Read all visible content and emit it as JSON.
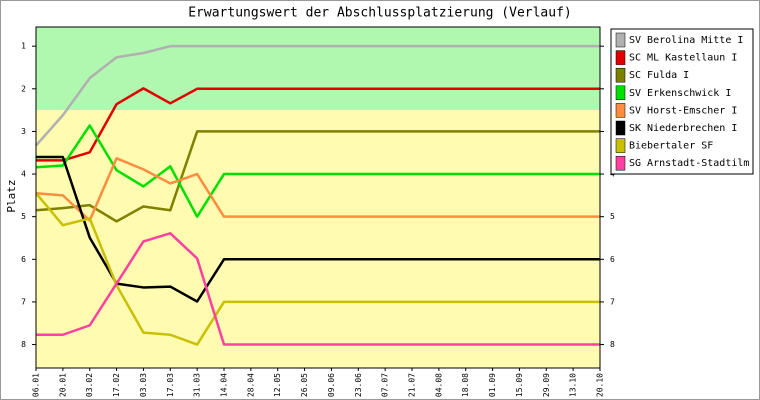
{
  "chart_data": {
    "type": "line",
    "title": "Erwartungswert der Abschlussplatzierung (Verlauf)",
    "y_label": "Platz",
    "categories": [
      "06.01",
      "20.01",
      "03.02",
      "17.02",
      "03.03",
      "17.03",
      "31.03",
      "14.04",
      "28.04",
      "12.05",
      "26.05",
      "09.06",
      "23.06",
      "07.07",
      "21.07",
      "04.08",
      "18.08",
      "01.09",
      "15.09",
      "29.09",
      "13.10",
      "20.10"
    ],
    "series": [
      {
        "name": "SV Berolina Mitte I",
        "color": "#b0b0b0",
        "values": [
          3.33,
          2.62,
          1.75,
          1.26,
          1.16,
          1,
          1,
          1,
          1,
          1,
          1,
          1,
          1,
          1,
          1,
          1,
          1,
          1,
          1,
          1,
          1,
          1
        ]
      },
      {
        "name": "SC ML Kastellaun I",
        "color": "#e00000",
        "values": [
          3.68,
          3.68,
          3.49,
          2.36,
          1.99,
          2.34,
          2,
          2,
          2,
          2,
          2,
          2,
          2,
          2,
          2,
          2,
          2,
          2,
          2,
          2,
          2,
          2
        ]
      },
      {
        "name": "SC Fulda I",
        "color": "#808000",
        "values": [
          4.85,
          4.8,
          4.73,
          5.11,
          4.76,
          4.85,
          3,
          3,
          3,
          3,
          3,
          3,
          3,
          3,
          3,
          3,
          3,
          3,
          3,
          3,
          3,
          3
        ]
      },
      {
        "name": "SV Erkenschwick I",
        "color": "#00e000",
        "values": [
          3.84,
          3.8,
          2.86,
          3.91,
          4.29,
          3.82,
          5,
          4,
          4,
          4,
          4,
          4,
          4,
          4,
          4,
          4,
          4,
          4,
          4,
          4,
          4,
          4
        ]
      },
      {
        "name": "SV Horst-Emscher I",
        "color": "#ff8c40",
        "values": [
          4.45,
          4.5,
          5.09,
          3.63,
          3.89,
          4.22,
          4,
          5,
          5,
          5,
          5,
          5,
          5,
          5,
          5,
          5,
          5,
          5,
          5,
          5,
          5,
          5
        ]
      },
      {
        "name": "SK Niederbrechen I",
        "color": "#000000",
        "values": [
          3.6,
          3.6,
          5.49,
          6.57,
          6.66,
          6.64,
          6.99,
          6,
          6,
          6,
          6,
          6,
          6,
          6,
          6,
          6,
          6,
          6,
          6,
          6,
          6,
          6
        ]
      },
      {
        "name": "Biebertaler SF",
        "color": "#c8c000",
        "values": [
          4.45,
          5.2,
          5.04,
          6.61,
          7.72,
          7.77,
          8,
          7,
          7,
          7,
          7,
          7,
          7,
          7,
          7,
          7,
          7,
          7,
          7,
          7,
          7,
          7
        ]
      },
      {
        "name": "SG Arnstadt-Stadtilm",
        "color": "#ff40a0",
        "values": [
          7.77,
          7.77,
          7.55,
          6.57,
          5.58,
          5.39,
          5.98,
          8,
          8,
          8,
          8,
          8,
          8,
          8,
          8,
          8,
          8,
          8,
          8,
          8,
          8,
          8
        ]
      }
    ],
    "ylim": [
      0.55,
      8.55
    ],
    "y_inverted": true,
    "yticks": [
      1,
      2,
      3,
      4,
      5,
      6,
      7,
      8
    ],
    "bands": [
      {
        "from": 0.55,
        "to": 2.5,
        "color": "#b0f8b0"
      },
      {
        "from": 2.5,
        "to": 8.55,
        "color": "#fffbb0"
      }
    ]
  }
}
